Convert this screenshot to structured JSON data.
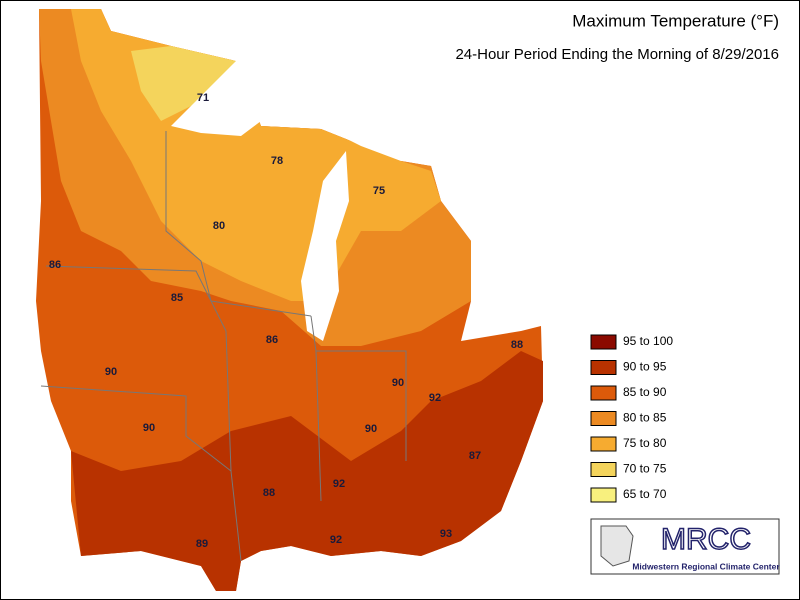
{
  "title": "Maximum Temperature (°F)",
  "subtitle": "24-Hour Period Ending the Morning of 8/29/2016",
  "legend": [
    {
      "label": "95 to 100",
      "color": "#8b0a00"
    },
    {
      "label": "90 to 95",
      "color": "#b83200"
    },
    {
      "label": "85 to 90",
      "color": "#dc5a0a"
    },
    {
      "label": "80 to 85",
      "color": "#ec8a22"
    },
    {
      "label": "75 to 80",
      "color": "#f6ab30"
    },
    {
      "label": "70 to 75",
      "color": "#f4d45c"
    },
    {
      "label": "65 to 70",
      "color": "#f8f07e"
    }
  ],
  "map_labels": [
    71,
    78,
    75,
    80,
    86,
    85,
    86,
    88,
    90,
    90,
    92,
    90,
    90,
    87,
    92,
    88,
    89,
    92,
    93
  ],
  "logo": {
    "name": "MRCC",
    "full_name": "Midwestern Regional Climate Center"
  }
}
